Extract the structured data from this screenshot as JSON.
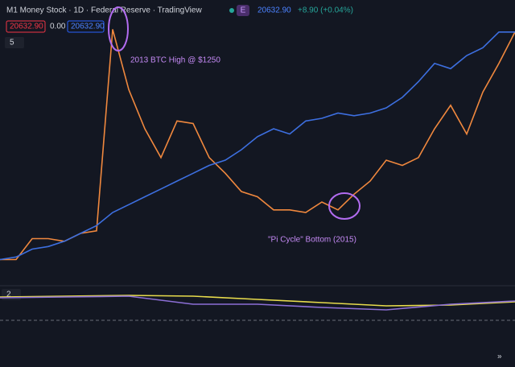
{
  "header": {
    "title": "M1 Money Stock · 1D · Federal Reserve · TradingView",
    "badge": "E",
    "price": "20632.90",
    "change": "+8.90 (+0.04%)",
    "values": [
      "20632.90",
      "0.00",
      "20632.90"
    ],
    "main_pane_count": "5",
    "lower_pane_count": "2"
  },
  "chart_data": [
    {
      "type": "line",
      "ylim": [
        0,
        100
      ],
      "annotations": [
        "2013 BTC High @ $1250",
        "\"Pi Cycle\" Bottom (2015)"
      ],
      "series": [
        {
          "color": "#f0883e",
          "values": [
            10,
            10,
            18,
            18,
            17,
            20,
            21,
            98,
            75,
            60,
            49,
            63,
            62,
            49,
            43,
            36,
            34,
            29,
            29,
            28,
            32,
            29,
            35,
            40,
            48,
            46,
            49,
            60,
            69,
            58,
            74,
            85,
            97
          ]
        },
        {
          "color": "#3d6fe0",
          "values": [
            10,
            11,
            14,
            15,
            17,
            20,
            23,
            28,
            31,
            34,
            37,
            40,
            43,
            46,
            48,
            52,
            57,
            60,
            58,
            63,
            64,
            66,
            65,
            66,
            68,
            72,
            78,
            85,
            83,
            88,
            91,
            97,
            97
          ]
        }
      ]
    },
    {
      "type": "line",
      "ylim": [
        0,
        10
      ],
      "series": [
        {
          "color": "#e8dc4c",
          "values": [
            7.25,
            7.5,
            7.75,
            7.5,
            6.5,
            5.5,
            4.5,
            4.75,
            5.75
          ]
        },
        {
          "color": "#8c6fd6",
          "values": [
            7,
            7.25,
            7.5,
            5,
            5,
            4,
            3.25,
            5,
            6
          ]
        }
      ]
    }
  ]
}
